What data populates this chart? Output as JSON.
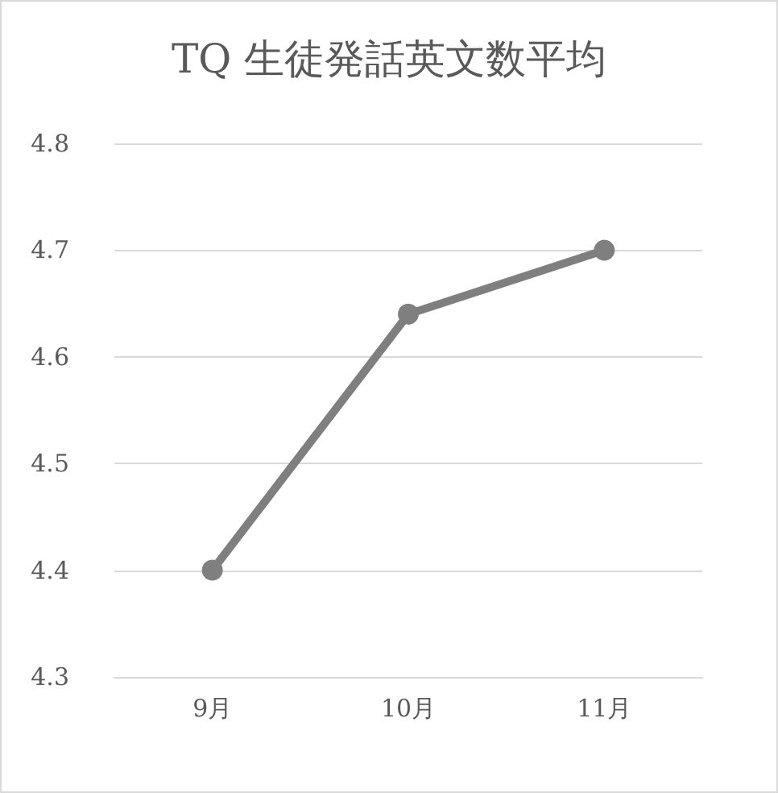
{
  "chart_data": {
    "type": "line",
    "title": "TQ 生徒発話英文数平均",
    "categories": [
      "9月",
      "10月",
      "11月"
    ],
    "series": [
      {
        "color": "#7f7f7f",
        "values": [
          4.4,
          4.64,
          4.7
        ]
      }
    ],
    "ylim": [
      4.3,
      4.8
    ],
    "yticks": [
      4.3,
      4.4,
      4.5,
      4.6,
      4.7,
      4.8
    ],
    "grid": "y",
    "marker": "circle",
    "line_style": "solid"
  }
}
